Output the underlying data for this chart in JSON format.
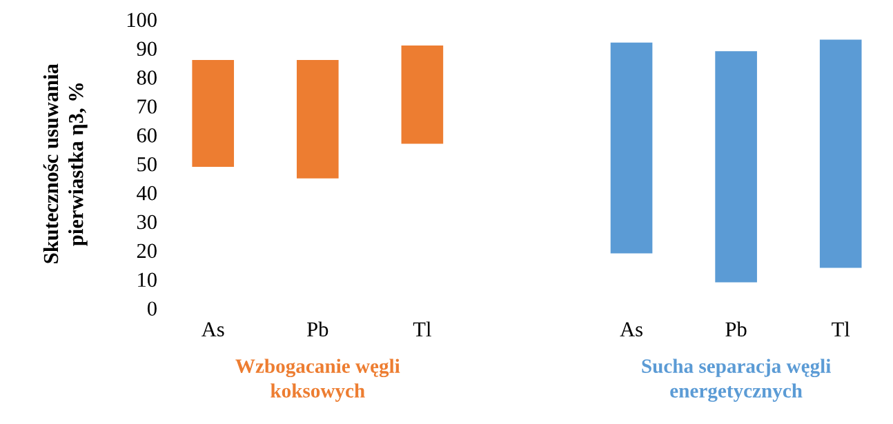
{
  "chart_data": {
    "type": "bar",
    "ylabel": "Skutecznośc usuwania\npierwiastka η3, %",
    "categories": [
      "As",
      "Pb",
      "Tl",
      null,
      "As",
      "Pb",
      "Tl"
    ],
    "series": [
      {
        "name": "Wzbogacanie węgli\nkoksowych",
        "color": "#ed7d31",
        "base": [
          49,
          45,
          57,
          null,
          null,
          null,
          null
        ],
        "values": [
          37,
          41,
          34,
          null,
          null,
          null,
          null
        ]
      },
      {
        "name": "Sucha separacja węgli\nenergetycznych",
        "color": "#5b9bd5",
        "base": [
          null,
          null,
          null,
          null,
          19,
          9,
          14
        ],
        "values": [
          null,
          null,
          null,
          null,
          73,
          80,
          79
        ]
      }
    ],
    "ylim": [
      0,
      100
    ],
    "yticks": [
      0,
      10,
      20,
      30,
      40,
      50,
      60,
      70,
      80,
      90,
      100
    ],
    "grid": false,
    "legend": false
  }
}
